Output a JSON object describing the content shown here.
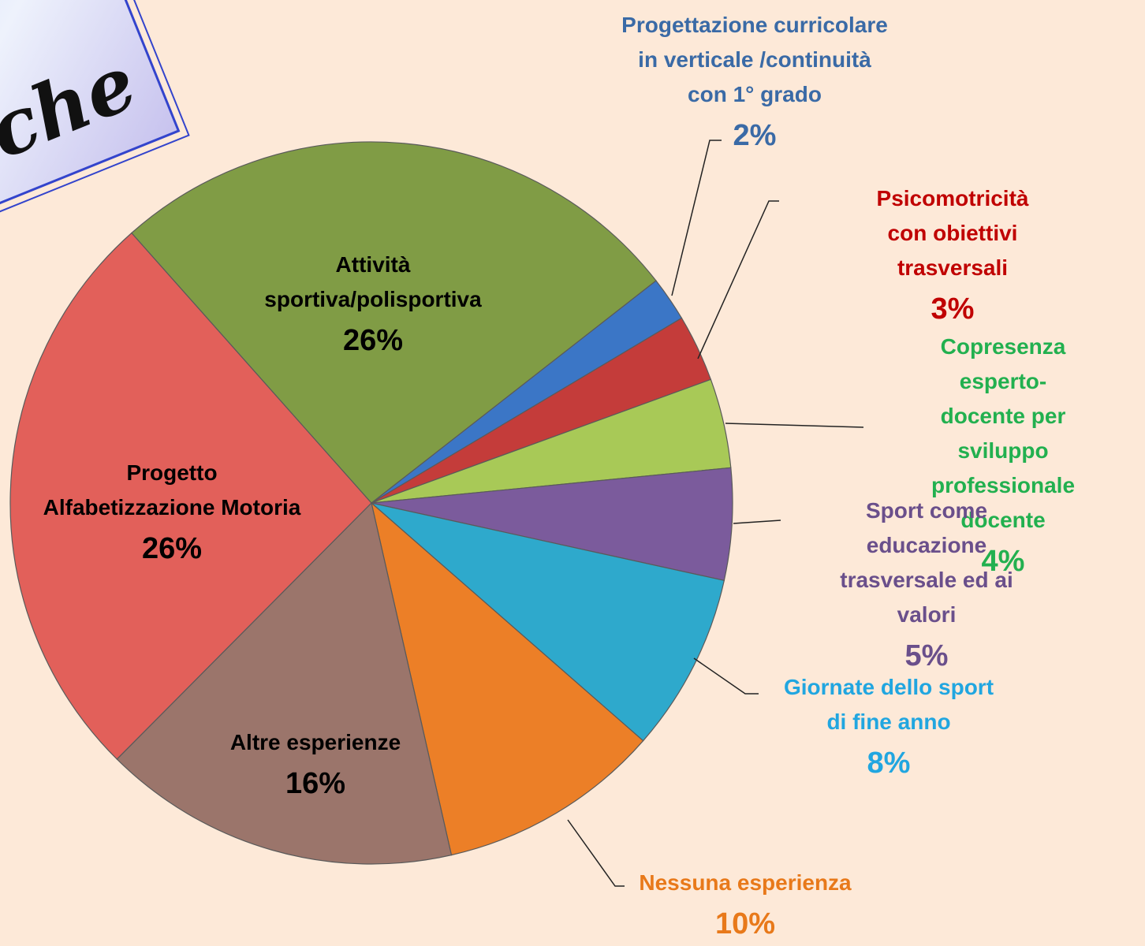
{
  "chart_data": {
    "type": "pie",
    "title_fragments": [
      "e",
      "che"
    ],
    "categories": [
      "Progettazione curricolare\nin verticale /continuità\ncon 1° grado",
      "Psicomotricità con obiettivi\ntrasversali",
      "Copresenza esperto-\ndocente per sviluppo\nprofessionale docente",
      "Sport come educazione\ntrasversale ed ai valori",
      "Giornate dello sport\ndi fine anno",
      "Nessuna esperienza",
      "Altre esperienze",
      "Progetto\nAlfabetizzazione Motoria",
      "Attività\nsportiva/polisportiva"
    ],
    "values": [
      2,
      3,
      4,
      5,
      8,
      10,
      16,
      26,
      26
    ],
    "value_labels": [
      "2%",
      "3%",
      "4%",
      "5%",
      "8%",
      "10%",
      "16%",
      "26%",
      "26%"
    ],
    "colors": [
      "#3b76c6",
      "#c43c3a",
      "#a8c957",
      "#7b5b9c",
      "#2ea9cc",
      "#ec7f27",
      "#9b756b",
      "#e2605a",
      "#809c45"
    ],
    "label_colors": [
      "#3a6aa6",
      "#c00000",
      "#22b04f",
      "#6a4f8b",
      "#21a6e0",
      "#e8791a",
      "#000000",
      "#000000",
      "#000000"
    ]
  }
}
